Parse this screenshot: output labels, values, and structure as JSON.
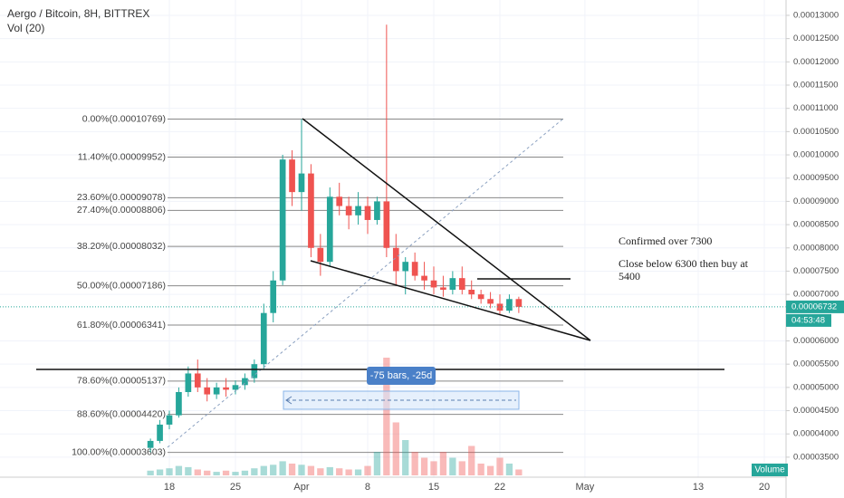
{
  "chart_data": {
    "type": "candlestick",
    "title": "Aergo / Bitcoin, 8H, BITTREX",
    "subtitle": "Vol (20)",
    "x": [
      16,
      17,
      18,
      19,
      20,
      21,
      22,
      23,
      24,
      25,
      26,
      27,
      28,
      29,
      30,
      31,
      32,
      33,
      34,
      35,
      36,
      37,
      38,
      39,
      40,
      41,
      42,
      43,
      44,
      45,
      46,
      47,
      48,
      49,
      50,
      51,
      52,
      53,
      54,
      55
    ],
    "open": [
      3.7e-05,
      3.85e-05,
      4.2e-05,
      4.4e-05,
      4.9e-05,
      5.3e-05,
      5e-05,
      4.85e-05,
      5e-05,
      4.95e-05,
      5.05e-05,
      5.2e-05,
      5.5e-05,
      6.6e-05,
      7.3e-05,
      9.9e-05,
      9.2e-05,
      9.6e-05,
      8e-05,
      7.7e-05,
      9.1e-05,
      8.9e-05,
      8.7e-05,
      8.9e-05,
      8.6e-05,
      9e-05,
      8e-05,
      7.5e-05,
      7.7e-05,
      7.4e-05,
      7.3e-05,
      7.15e-05,
      7.1e-05,
      7.35e-05,
      7.1e-05,
      7e-05,
      6.9e-05,
      6.8e-05,
      6.65e-05,
      6.9e-05
    ],
    "high": [
      3.9e-05,
      4.3e-05,
      4.5e-05,
      5e-05,
      5.45e-05,
      5.6e-05,
      5.2e-05,
      5.1e-05,
      5.2e-05,
      5.15e-05,
      5.3e-05,
      5.6e-05,
      6.8e-05,
      7.5e-05,
      0.0001,
      0.000101,
      0.00010769,
      9.8e-05,
      8.3e-05,
      9.3e-05,
      9.4e-05,
      9.1e-05,
      9.2e-05,
      9.1e-05,
      9.1e-05,
      0.000128,
      8.3e-05,
      7.8e-05,
      7.9e-05,
      7.7e-05,
      7.6e-05,
      7.4e-05,
      7.5e-05,
      7.6e-05,
      7.3e-05,
      7.1e-05,
      7.05e-05,
      7e-05,
      7e-05,
      6.95e-05
    ],
    "low": [
      3.603e-05,
      3.8e-05,
      4.1e-05,
      4.35e-05,
      4.8e-05,
      4.9e-05,
      4.7e-05,
      4.75e-05,
      4.8e-05,
      4.85e-05,
      4.95e-05,
      5.1e-05,
      5.4e-05,
      6.4e-05,
      7.2e-05,
      8.9e-05,
      8.8e-05,
      7.8e-05,
      7.4e-05,
      7.6e-05,
      8.7e-05,
      8.4e-05,
      8.5e-05,
      8.3e-05,
      8.5e-05,
      7.8e-05,
      7.2e-05,
      7e-05,
      7.3e-05,
      7.1e-05,
      7e-05,
      6.95e-05,
      7e-05,
      7e-05,
      6.9e-05,
      6.8e-05,
      6.7e-05,
      6.55e-05,
      6.6e-05,
      6.6e-05
    ],
    "close": [
      3.85e-05,
      4.2e-05,
      4.4e-05,
      4.9e-05,
      5.3e-05,
      5e-05,
      4.85e-05,
      5e-05,
      4.95e-05,
      5.05e-05,
      5.2e-05,
      5.5e-05,
      6.6e-05,
      7.3e-05,
      9.9e-05,
      9.2e-05,
      9.6e-05,
      8e-05,
      7.7e-05,
      9.1e-05,
      8.9e-05,
      8.7e-05,
      8.9e-05,
      8.6e-05,
      9e-05,
      8e-05,
      7.5e-05,
      7.7e-05,
      7.4e-05,
      7.3e-05,
      7.15e-05,
      7.1e-05,
      7.35e-05,
      7.1e-05,
      7e-05,
      6.9e-05,
      6.8e-05,
      6.65e-05,
      6.9e-05,
      6.732e-05
    ],
    "volume": [
      4,
      5,
      6,
      8,
      7,
      5,
      4,
      3,
      4,
      3,
      4,
      6,
      8,
      9,
      12,
      10,
      9,
      8,
      6,
      7,
      6,
      5,
      5,
      8,
      20,
      100,
      45,
      30,
      20,
      15,
      12,
      20,
      15,
      12,
      25,
      10,
      8,
      15,
      10,
      5
    ],
    "up_color": "#26a69a",
    "down_color": "#ef5350",
    "xlim": [
      0.07,
      83.3
    ],
    "xticks": [
      {
        "value": 18,
        "label": "18"
      },
      {
        "value": 25,
        "label": "25"
      },
      {
        "value": 32,
        "label": "Apr"
      },
      {
        "value": 39,
        "label": "8"
      },
      {
        "value": 46,
        "label": "15"
      },
      {
        "value": 53,
        "label": "22"
      },
      {
        "value": 62,
        "label": "May"
      },
      {
        "value": 74,
        "label": "13"
      },
      {
        "value": 81,
        "label": "20"
      }
    ],
    "ylim": [
      3.07e-05,
      0.0001333
    ],
    "yticks": [
      {
        "value": 0.00013,
        "label": "0.00013000"
      },
      {
        "value": 0.000125,
        "label": "0.00012500"
      },
      {
        "value": 0.00012,
        "label": "0.00012000"
      },
      {
        "value": 0.000115,
        "label": "0.00011500"
      },
      {
        "value": 0.00011,
        "label": "0.00011000"
      },
      {
        "value": 0.000105,
        "label": "0.00010500"
      },
      {
        "value": 0.0001,
        "label": "0.00010000"
      },
      {
        "value": 9.5e-05,
        "label": "0.00009500"
      },
      {
        "value": 9e-05,
        "label": "0.00009000"
      },
      {
        "value": 8.5e-05,
        "label": "0.00008500"
      },
      {
        "value": 8e-05,
        "label": "0.00008000"
      },
      {
        "value": 7.5e-05,
        "label": "0.00007500"
      },
      {
        "value": 7e-05,
        "label": "0.00007000"
      },
      {
        "value": 6e-05,
        "label": "0.00006000"
      },
      {
        "value": 5.5e-05,
        "label": "0.00005500"
      },
      {
        "value": 5e-05,
        "label": "0.00005000"
      },
      {
        "value": 4.5e-05,
        "label": "0.00004500"
      },
      {
        "value": 4e-05,
        "label": "0.00004000"
      },
      {
        "value": 3.5e-05,
        "label": "0.00003500"
      }
    ],
    "grid": true,
    "fib_levels": [
      {
        "label": "0.00%(0.00010769)",
        "value": 0.00010769
      },
      {
        "label": "11.40%(0.00009952)",
        "value": 9.952e-05
      },
      {
        "label": "23.60%(0.00009078)",
        "value": 9.078e-05
      },
      {
        "label": "27.40%(0.00008806)",
        "value": 8.806e-05
      },
      {
        "label": "38.20%(0.00008032)",
        "value": 8.032e-05
      },
      {
        "label": "50.00%(0.00007186)",
        "value": 7.186e-05
      },
      {
        "label": "61.80%(0.00006341)",
        "value": 6.341e-05
      },
      {
        "label": "78.60%(0.00005137)",
        "value": 5.137e-05
      },
      {
        "label": "88.60%(0.00004420)",
        "value": 4.42e-05
      },
      {
        "label": "100.00%(0.00003603)",
        "value": 3.603e-05
      }
    ],
    "last_price": 6.732e-05,
    "countdown": "04:53:48",
    "volume_label": "Volume",
    "range_label": "-75 bars, -25d",
    "annotations": [
      "Confirmed over 7300",
      "Close below 6300 then buy at 5400"
    ]
  }
}
